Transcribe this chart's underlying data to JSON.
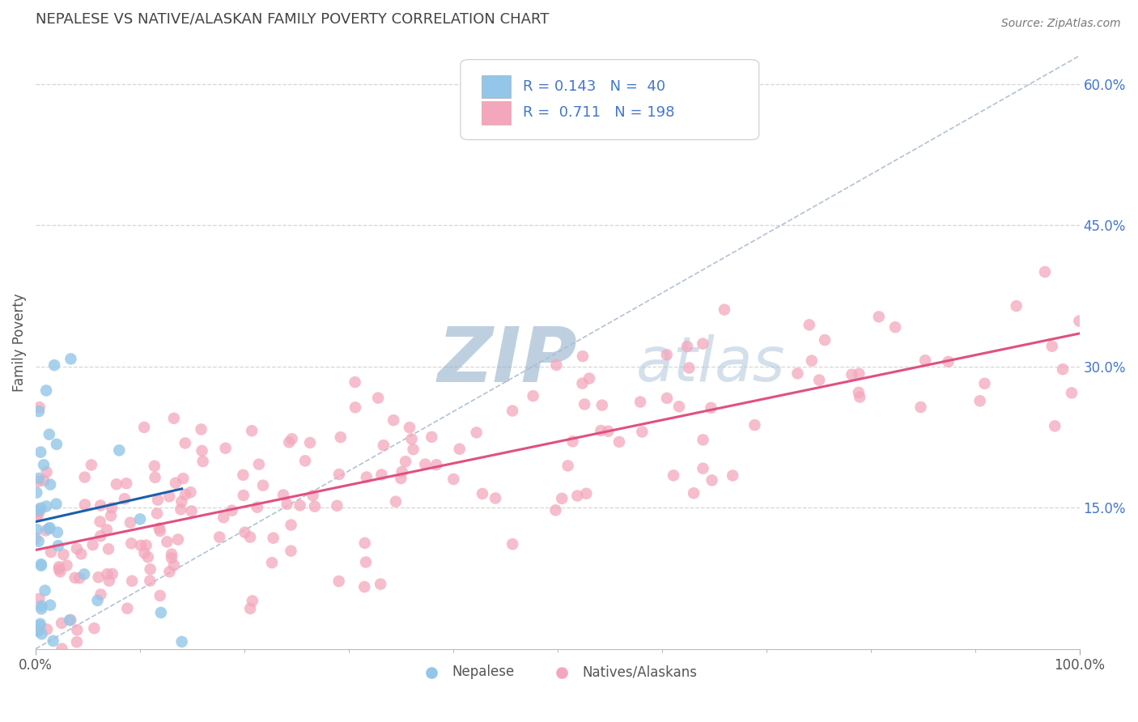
{
  "title": "NEPALESE VS NATIVE/ALASKAN FAMILY POVERTY CORRELATION CHART",
  "source": "Source: ZipAtlas.com",
  "xlabel": "",
  "ylabel": "Family Poverty",
  "xlim": [
    0,
    100
  ],
  "ylim": [
    0,
    65
  ],
  "x_tick_labels": [
    "0.0%",
    "100.0%"
  ],
  "y_tick_labels_right": [
    "15.0%",
    "30.0%",
    "45.0%",
    "60.0%"
  ],
  "y_tick_vals_right": [
    15,
    30,
    45,
    60
  ],
  "nepalese_color": "#93C6E8",
  "native_color": "#F4A7BC",
  "nepalese_line_color": "#1A5FAD",
  "native_line_color": "#E05080",
  "diagonal_color": "#AABBD0",
  "background_color": "#FFFFFF",
  "title_color": "#444444",
  "title_fontsize": 13,
  "axis_label_color": "#555555",
  "legend_text_color": "#4477CC",
  "right_tick_color": "#4477CC",
  "nepalese_N": 40,
  "native_N": 198,
  "nepalese_R": "0.143",
  "native_R": "0.711",
  "nat_line_x0": 0,
  "nat_line_y0": 10.5,
  "nat_line_x1": 100,
  "nat_line_y1": 33.5,
  "nep_line_x0": 0,
  "nep_line_y0": 13.5,
  "nep_line_x1": 14,
  "nep_line_y1": 17.0,
  "diag_x0": 0,
  "diag_y0": 0,
  "diag_x1": 100,
  "diag_y1": 63,
  "watermark_ZIP_color": "#8AAAC8",
  "watermark_atlas_color": "#B8CCE0",
  "hline_color": "#CCCCCC",
  "hline_vals": [
    15,
    30,
    45,
    60
  ],
  "dot_size": 110
}
